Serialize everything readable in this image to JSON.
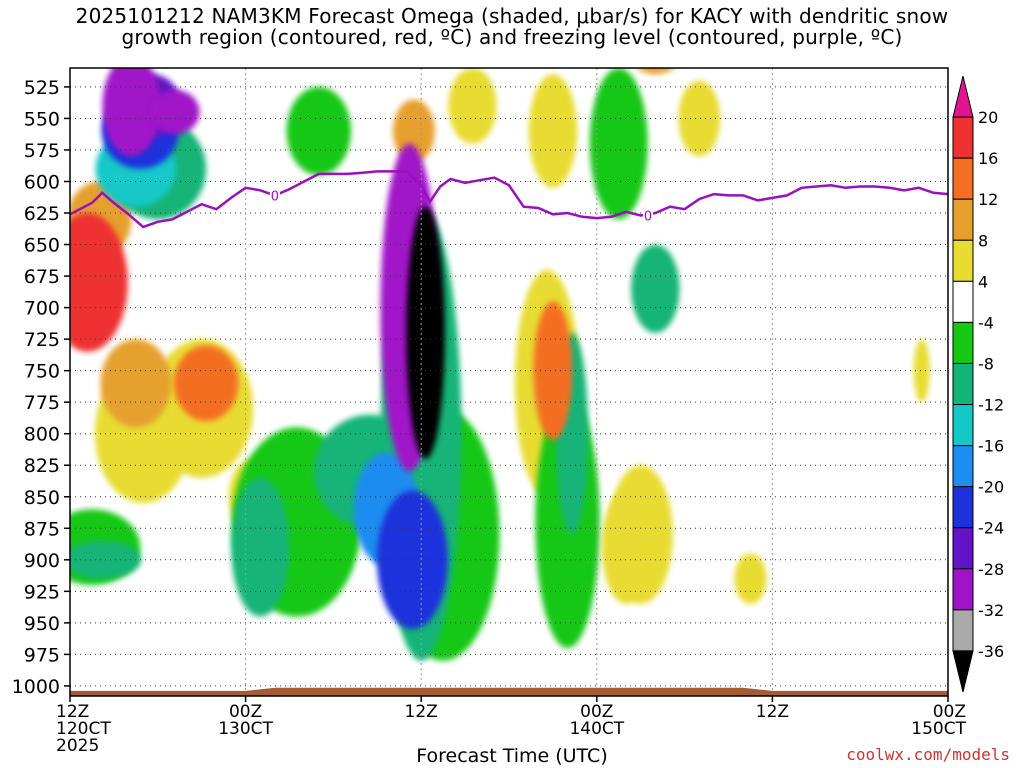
{
  "title_line1": "2025101212 NAM3KM Forecast Omega (shaded, μbar/s) for KACY with dendritic snow",
  "title_line2": "growth region (contoured, red, ºC) and freezing level (contoured, purple, ºC)",
  "credit": "coolwx.com/models",
  "chart_data": {
    "type": "heatmap",
    "xlabel": "Forecast Time (UTC)",
    "ylabel": "",
    "x_ticks": [
      {
        "hour": 0,
        "line1": "12Z",
        "line2": "120CT",
        "line3": "2025"
      },
      {
        "hour": 12,
        "line1": "00Z",
        "line2": "130CT",
        "line3": ""
      },
      {
        "hour": 24,
        "line1": "12Z",
        "line2": "",
        "line3": ""
      },
      {
        "hour": 36,
        "line1": "00Z",
        "line2": "140CT",
        "line3": ""
      },
      {
        "hour": 48,
        "line1": "12Z",
        "line2": "",
        "line3": ""
      },
      {
        "hour": 60,
        "line1": "00Z",
        "line2": "150CT",
        "line3": ""
      }
    ],
    "x_range_hours": [
      0,
      60
    ],
    "y_levels": [
      525,
      550,
      575,
      600,
      625,
      650,
      675,
      700,
      725,
      750,
      775,
      800,
      825,
      850,
      875,
      900,
      925,
      950,
      975,
      1000
    ],
    "y_range_hPa": [
      510,
      1008
    ],
    "colorbar": {
      "labels": [
        "20",
        "16",
        "12",
        "8",
        "4",
        "-4",
        "-8",
        "-12",
        "-16",
        "-20",
        "-24",
        "-28",
        "-32",
        "-36"
      ],
      "bins": [
        {
          "lo": 20,
          "hi": null,
          "color": "#e0148c"
        },
        {
          "lo": 16,
          "hi": 20,
          "color": "#ee3232"
        },
        {
          "lo": 12,
          "hi": 16,
          "color": "#f46e23"
        },
        {
          "lo": 8,
          "hi": 12,
          "color": "#e6a02d"
        },
        {
          "lo": 4,
          "hi": 8,
          "color": "#e8dc32"
        },
        {
          "lo": -4,
          "hi": 4,
          "color": "#ffffff"
        },
        {
          "lo": -8,
          "hi": -4,
          "color": "#14c814"
        },
        {
          "lo": -12,
          "hi": -8,
          "color": "#12b478"
        },
        {
          "lo": -16,
          "hi": -12,
          "color": "#14c8c8"
        },
        {
          "lo": -20,
          "hi": -16,
          "color": "#1e8cf0"
        },
        {
          "lo": -24,
          "hi": -20,
          "color": "#1e32dc"
        },
        {
          "lo": -28,
          "hi": -24,
          "color": "#6414c8"
        },
        {
          "lo": -32,
          "hi": -28,
          "color": "#a014c8"
        },
        {
          "lo": -36,
          "hi": -32,
          "color": "#aaaaaa"
        },
        {
          "lo": null,
          "hi": -36,
          "color": "#000000"
        }
      ]
    },
    "freezing_level": {
      "label": "0",
      "color": "#9a0fbe",
      "points": [
        [
          0,
          626
        ],
        [
          1.5,
          617
        ],
        [
          2.2,
          609
        ],
        [
          3,
          617
        ],
        [
          4,
          626
        ],
        [
          5,
          636
        ],
        [
          6,
          632
        ],
        [
          7,
          630
        ],
        [
          8,
          624
        ],
        [
          9,
          618
        ],
        [
          10,
          622
        ],
        [
          11,
          613
        ],
        [
          12,
          605
        ],
        [
          13,
          607
        ],
        [
          14,
          611
        ],
        [
          15,
          606
        ],
        [
          16,
          600
        ],
        [
          17,
          594
        ],
        [
          18,
          594
        ],
        [
          19,
          594
        ],
        [
          20,
          593
        ],
        [
          21,
          592
        ],
        [
          22,
          592
        ],
        [
          23,
          592
        ],
        [
          24,
          603
        ],
        [
          24.6,
          616
        ],
        [
          25.3,
          604
        ],
        [
          26,
          598
        ],
        [
          27,
          601
        ],
        [
          28,
          599
        ],
        [
          29,
          597
        ],
        [
          30,
          603
        ],
        [
          31,
          620
        ],
        [
          32,
          621
        ],
        [
          33,
          626
        ],
        [
          34,
          625
        ],
        [
          35,
          628
        ],
        [
          36,
          629
        ],
        [
          37,
          628
        ],
        [
          38,
          624
        ],
        [
          39,
          627
        ],
        [
          40,
          625
        ],
        [
          41,
          620
        ],
        [
          42,
          622
        ],
        [
          43,
          614
        ],
        [
          44,
          610
        ],
        [
          45,
          611
        ],
        [
          46,
          611
        ],
        [
          47,
          615
        ],
        [
          48,
          613
        ],
        [
          49,
          611
        ],
        [
          50,
          605
        ],
        [
          51,
          604
        ],
        [
          52,
          603
        ],
        [
          53,
          605
        ],
        [
          54,
          604
        ],
        [
          55,
          604
        ],
        [
          56,
          605
        ],
        [
          57,
          607
        ],
        [
          58,
          605
        ],
        [
          59,
          609
        ],
        [
          60,
          610
        ]
      ],
      "labels_at_hours": [
        14,
        39.5
      ]
    },
    "omega_features": [
      {
        "hour": 1.2,
        "p": 680,
        "w": 2.5,
        "h": 110,
        "value": 16
      },
      {
        "hour": 2.0,
        "p": 630,
        "w": 2.0,
        "h": 60,
        "value": 8
      },
      {
        "hour": 2.2,
        "p": 900,
        "w": 2.4,
        "h": 30,
        "value": -12
      },
      {
        "hour": 1.5,
        "p": 890,
        "w": 3.0,
        "h": 60,
        "value": -6
      },
      {
        "hour": 4.2,
        "p": 540,
        "w": 1.8,
        "h": 80,
        "value": -30
      },
      {
        "hour": 4.8,
        "p": 560,
        "w": 2.4,
        "h": 60,
        "value": -24
      },
      {
        "hour": 5.6,
        "p": 540,
        "w": 1.8,
        "h": 50,
        "value": -28
      },
      {
        "hour": 7.2,
        "p": 545,
        "w": 1.5,
        "h": 35,
        "value": -30
      },
      {
        "hour": 6.0,
        "p": 590,
        "w": 3.0,
        "h": 80,
        "value": -10
      },
      {
        "hour": 4.5,
        "p": 590,
        "w": 2.5,
        "h": 60,
        "value": -16
      },
      {
        "hour": 4.5,
        "p": 760,
        "w": 2.2,
        "h": 70,
        "value": 11
      },
      {
        "hour": 5.0,
        "p": 800,
        "w": 3.0,
        "h": 110,
        "value": 6
      },
      {
        "hour": 9.3,
        "p": 760,
        "w": 2.0,
        "h": 60,
        "value": 12
      },
      {
        "hour": 9.0,
        "p": 780,
        "w": 3.2,
        "h": 110,
        "value": 6
      },
      {
        "hour": 12.5,
        "p": 850,
        "w": 1.5,
        "h": 60,
        "value": 5
      },
      {
        "hour": 13.0,
        "p": 890,
        "w": 1.8,
        "h": 110,
        "value": -10
      },
      {
        "hour": 15.5,
        "p": 870,
        "w": 4.0,
        "h": 150,
        "value": -8
      },
      {
        "hour": 17.0,
        "p": 560,
        "w": 2.0,
        "h": 70,
        "value": -6
      },
      {
        "hour": 20.5,
        "p": 830,
        "w": 3.5,
        "h": 90,
        "value": -10
      },
      {
        "hour": 21.6,
        "p": 860,
        "w": 2.0,
        "h": 90,
        "value": -18
      },
      {
        "hour": 23.2,
        "p": 700,
        "w": 1.8,
        "h": 260,
        "value": -30
      },
      {
        "hour": 23.4,
        "p": 900,
        "w": 2.2,
        "h": 110,
        "value": -24
      },
      {
        "hour": 24.3,
        "p": 720,
        "w": 1.2,
        "h": 200,
        "value": -40
      },
      {
        "hour": 24.0,
        "p": 800,
        "w": 2.5,
        "h": 360,
        "value": -12
      },
      {
        "hour": 25.5,
        "p": 880,
        "w": 3.5,
        "h": 200,
        "value": -6
      },
      {
        "hour": 23.5,
        "p": 560,
        "w": 1.3,
        "h": 50,
        "value": 8
      },
      {
        "hour": 27.5,
        "p": 540,
        "w": 1.5,
        "h": 60,
        "value": 5
      },
      {
        "hour": 33.0,
        "p": 750,
        "w": 1.2,
        "h": 110,
        "value": 12
      },
      {
        "hour": 32.6,
        "p": 760,
        "w": 2.0,
        "h": 180,
        "value": 6
      },
      {
        "hour": 34.3,
        "p": 800,
        "w": 1.0,
        "h": 160,
        "value": -10
      },
      {
        "hour": 34.0,
        "p": 870,
        "w": 2.0,
        "h": 200,
        "value": -6
      },
      {
        "hour": 33.0,
        "p": 560,
        "w": 1.5,
        "h": 90,
        "value": 6
      },
      {
        "hour": 37.5,
        "p": 570,
        "w": 1.8,
        "h": 120,
        "value": -6
      },
      {
        "hour": 38.0,
        "p": 890,
        "w": 1.5,
        "h": 90,
        "value": 7
      },
      {
        "hour": 39.0,
        "p": 880,
        "w": 2.0,
        "h": 110,
        "value": 5
      },
      {
        "hour": 40.0,
        "p": 685,
        "w": 1.5,
        "h": 70,
        "value": -12
      },
      {
        "hour": 43.0,
        "p": 550,
        "w": 1.3,
        "h": 60,
        "value": 5
      },
      {
        "hour": 40.0,
        "p": 500,
        "w": 1.5,
        "h": 30,
        "value": 8
      },
      {
        "hour": 46.5,
        "p": 915,
        "w": 1.0,
        "h": 40,
        "value": 6
      },
      {
        "hour": 58.2,
        "p": 750,
        "w": 0.5,
        "h": 50,
        "value": 5
      }
    ],
    "terrain_color": "#a65c32"
  }
}
